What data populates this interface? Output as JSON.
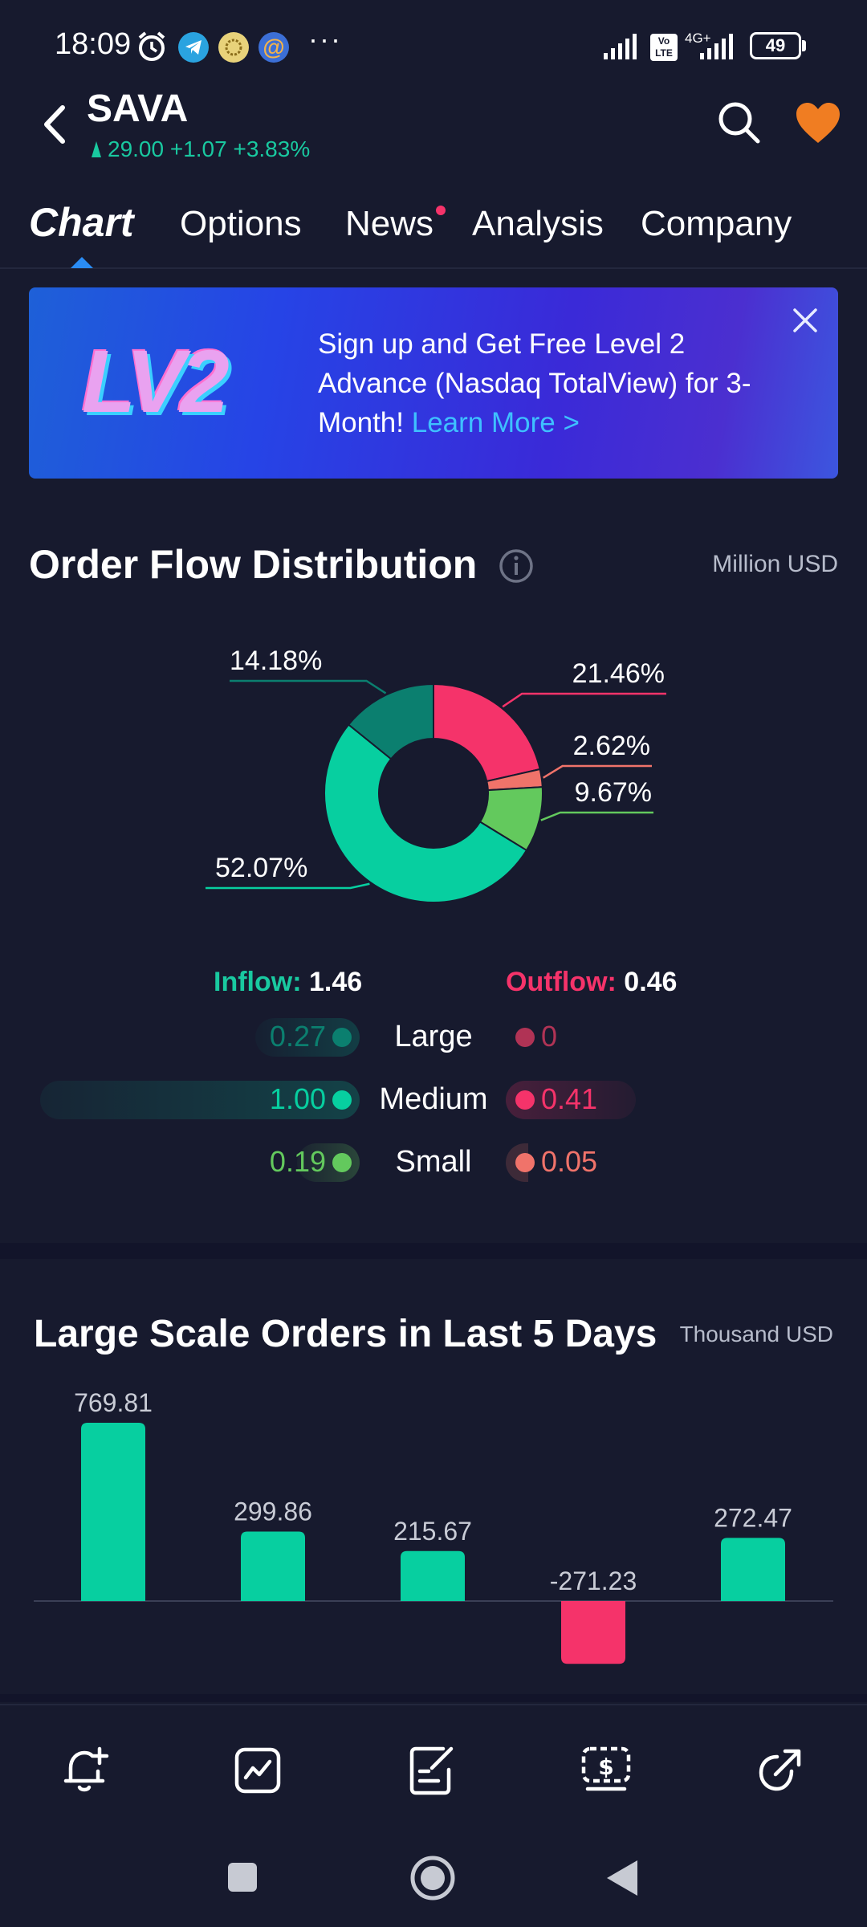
{
  "status_bar": {
    "time": "18:09",
    "battery": "49",
    "network": "4G+",
    "volte": "Vo LTE",
    "more": "···"
  },
  "header": {
    "ticker": "SAVA",
    "price_line": "29.00 +1.07 +3.83%"
  },
  "tabs": [
    {
      "label": "Chart",
      "active": true
    },
    {
      "label": "Options"
    },
    {
      "label": "News",
      "badge": true
    },
    {
      "label": "Analysis"
    },
    {
      "label": "Company"
    }
  ],
  "banner": {
    "logo_text": "LV2",
    "text": "Sign up and Get Free Level 2 Advance (Nasdaq TotalView) for 3-Month! ",
    "link": "Learn More >"
  },
  "order_flow": {
    "title": "Order Flow Distribution",
    "unit": "Million USD",
    "inflow_label": "Inflow:",
    "inflow_value": "1.46",
    "outflow_label": "Outflow:",
    "outflow_value": "0.46",
    "rows": [
      {
        "label": "Large",
        "inflow": "0.27",
        "outflow": "0"
      },
      {
        "label": "Medium",
        "inflow": "1.00",
        "outflow": "0.41"
      },
      {
        "label": "Small",
        "inflow": "0.19",
        "outflow": "0.05"
      }
    ],
    "colors": {
      "large_in": "#0b7f6f",
      "medium_in": "#07cfa0",
      "small_in": "#63c95d",
      "large_out": "#b03355",
      "medium_out": "#f5336a",
      "small_out": "#f0736a"
    }
  },
  "chart_data": [
    {
      "type": "pie",
      "slices": [
        {
          "value": 21.46,
          "label": "21.46%",
          "color": "#f5336a"
        },
        {
          "value": 2.62,
          "label": "2.62%",
          "color": "#f0736a"
        },
        {
          "value": 9.67,
          "label": "9.67%",
          "color": "#63c95d"
        },
        {
          "value": 52.07,
          "label": "52.07%",
          "color": "#07cfa0"
        },
        {
          "value": 14.18,
          "label": "14.18%",
          "color": "#0b7f6f"
        }
      ]
    },
    {
      "type": "bar",
      "title": "Large Scale Orders in Last 5 Days",
      "unit": "Thousand USD",
      "values": [
        769.81,
        299.86,
        215.67,
        -271.23,
        272.47
      ],
      "labels": [
        "769.81",
        "299.86",
        "215.67",
        "-271.23",
        "272.47"
      ],
      "colors": {
        "positive": "#07cfa0",
        "negative": "#f5336a"
      }
    }
  ],
  "bottom_nav": [
    {
      "icon": "bell-plus-icon"
    },
    {
      "icon": "chart-line-icon"
    },
    {
      "icon": "note-edit-icon"
    },
    {
      "icon": "dollar-screen-icon"
    },
    {
      "icon": "share-arrow-icon"
    }
  ]
}
